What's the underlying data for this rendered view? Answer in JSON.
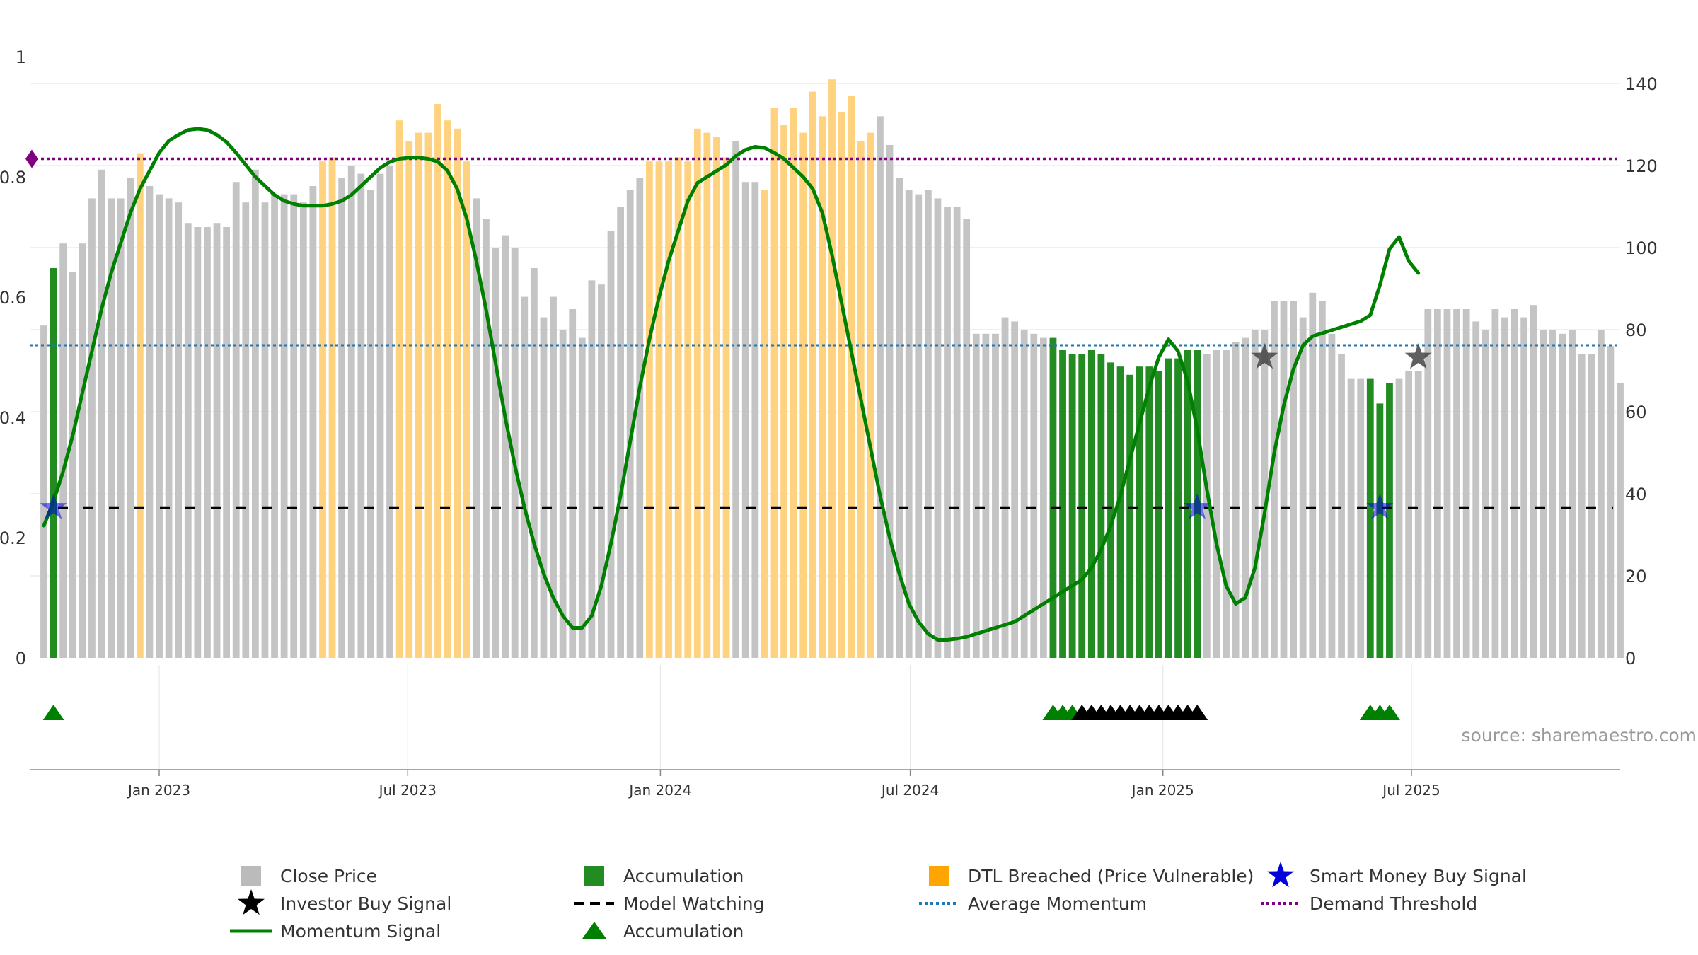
{
  "source_text": "source: sharemaestro.com",
  "chart_data": {
    "type": "bar",
    "x_start": "2022-10-09",
    "bar_interval_days": 7,
    "y_left_ticks": [
      "0",
      "0.2",
      "0.4",
      "0.6",
      "0.8",
      "1"
    ],
    "y_right_ticks": [
      "0",
      "20",
      "40",
      "60",
      "80",
      "100",
      "120",
      "140"
    ],
    "y_left_range": [
      0,
      1
    ],
    "y_right_range": [
      0,
      140
    ],
    "x_ticks": [
      {
        "label": "Jan 2023",
        "date": "2023-01-01"
      },
      {
        "label": "Jul 2023",
        "date": "2023-07-01"
      },
      {
        "label": "Jan 2024",
        "date": "2024-01-01"
      },
      {
        "label": "Jul 2024",
        "date": "2024-07-01"
      },
      {
        "label": "Jan 2025",
        "date": "2025-01-01"
      },
      {
        "label": "Jul 2025",
        "date": "2025-07-01"
      }
    ],
    "close_price": [
      81,
      95,
      101,
      94,
      101,
      112,
      119,
      112,
      112,
      117,
      123,
      115,
      113,
      112,
      111,
      106,
      105,
      105,
      106,
      105,
      116,
      111,
      119,
      111,
      113,
      113,
      113,
      111,
      115,
      121,
      122,
      117,
      120,
      118,
      114,
      118,
      120,
      131,
      126,
      128,
      128,
      135,
      131,
      129,
      121,
      112,
      107,
      100,
      103,
      100,
      88,
      95,
      83,
      88,
      80,
      85,
      78,
      92,
      91,
      104,
      110,
      114,
      117,
      121,
      121,
      121,
      122,
      121,
      129,
      128,
      127,
      122,
      126,
      116,
      116,
      114,
      134,
      130,
      134,
      128,
      138,
      132,
      141,
      133,
      137,
      126,
      128,
      132,
      125,
      117,
      114,
      113,
      114,
      112,
      110,
      110,
      107,
      79,
      79,
      79,
      83,
      82,
      80,
      79,
      78,
      78,
      75,
      74,
      74,
      75,
      74,
      72,
      71,
      69,
      71,
      71,
      70,
      73,
      73,
      75,
      75,
      74,
      75,
      75,
      77,
      78,
      80,
      80,
      87,
      87,
      87,
      83,
      89,
      87,
      79,
      74,
      68,
      68,
      68,
      62,
      67,
      68,
      70,
      70,
      85,
      85,
      85,
      85,
      85,
      82,
      80,
      85,
      83,
      85,
      83,
      86,
      80,
      80,
      79,
      80,
      74,
      74,
      80,
      76,
      67
    ],
    "close_price_categories": {
      "accumulation_ranges": [
        [
          1,
          1
        ],
        [
          105,
          120
        ],
        [
          138,
          140
        ]
      ],
      "dtl_ranges": [
        [
          10,
          10
        ],
        [
          29,
          30
        ],
        [
          37,
          44
        ],
        [
          63,
          71
        ],
        [
          75,
          86
        ]
      ]
    },
    "momentum_signal": [
      0.22,
      0.26,
      0.31,
      0.37,
      0.44,
      0.51,
      0.58,
      0.64,
      0.69,
      0.74,
      0.78,
      0.81,
      0.84,
      0.86,
      0.87,
      0.878,
      0.88,
      0.878,
      0.87,
      0.858,
      0.84,
      0.82,
      0.8,
      0.785,
      0.77,
      0.76,
      0.755,
      0.752,
      0.752,
      0.752,
      0.755,
      0.76,
      0.77,
      0.785,
      0.8,
      0.815,
      0.825,
      0.83,
      0.832,
      0.832,
      0.83,
      0.825,
      0.81,
      0.78,
      0.73,
      0.66,
      0.58,
      0.49,
      0.4,
      0.32,
      0.25,
      0.19,
      0.14,
      0.1,
      0.07,
      0.05,
      0.05,
      0.07,
      0.12,
      0.19,
      0.27,
      0.36,
      0.45,
      0.53,
      0.6,
      0.66,
      0.71,
      0.76,
      0.79,
      0.8,
      0.81,
      0.82,
      0.835,
      0.845,
      0.85,
      0.848,
      0.84,
      0.83,
      0.815,
      0.8,
      0.78,
      0.74,
      0.67,
      0.59,
      0.51,
      0.43,
      0.35,
      0.27,
      0.2,
      0.14,
      0.09,
      0.06,
      0.04,
      0.03,
      0.03,
      0.032,
      0.035,
      0.04,
      0.045,
      0.05,
      0.055,
      0.06,
      0.07,
      0.08,
      0.09,
      0.1,
      0.11,
      0.12,
      0.13,
      0.15,
      0.18,
      0.22,
      0.27,
      0.33,
      0.39,
      0.45,
      0.5,
      0.53,
      0.51,
      0.46,
      0.38,
      0.28,
      0.19,
      0.12,
      0.09,
      0.1,
      0.15,
      0.24,
      0.34,
      0.42,
      0.48,
      0.52,
      0.535,
      0.54,
      0.545,
      0.55,
      0.555,
      0.56,
      0.57,
      0.62,
      0.68,
      0.7,
      0.66,
      0.64
    ],
    "average_momentum": 0.52,
    "demand_threshold": 0.83,
    "model_watching": 0.25,
    "smart_money_buy_signals": [
      {
        "index": 1,
        "y": 0.25
      },
      {
        "index": 120,
        "y": 0.25
      },
      {
        "index": 139,
        "y": 0.25
      }
    ],
    "investor_buy_signals": [
      {
        "index": 127,
        "y": 0.5
      },
      {
        "index": 143,
        "y": 0.5
      }
    ],
    "signal_strip": {
      "green_up_triangles": [
        1,
        105,
        106,
        107,
        138,
        139,
        140
      ],
      "black_up_triangles": [
        108,
        109,
        110,
        111,
        112,
        113,
        114,
        115,
        116,
        117,
        118,
        119,
        120
      ]
    },
    "legend": [
      {
        "label": "Close Price",
        "marker": "square",
        "color": "#bbbbbb"
      },
      {
        "label": "Accumulation",
        "marker": "square",
        "color": "#228b22"
      },
      {
        "label": "DTL Breached (Price Vulnerable)",
        "marker": "square",
        "color": "#ffa500"
      },
      {
        "label": "Smart Money Buy Signal",
        "marker": "star",
        "color": "#0000dd"
      },
      {
        "label": "Investor Buy Signal",
        "marker": "star",
        "color": "#000000"
      },
      {
        "label": "Model Watching",
        "marker": "dash",
        "color": "#000000"
      },
      {
        "label": "Average Momentum",
        "marker": "dot",
        "color": "#1f77b4"
      },
      {
        "label": "Demand Threshold",
        "marker": "dot",
        "color": "#800080"
      },
      {
        "label": "Momentum Signal",
        "marker": "line",
        "color": "#008000"
      },
      {
        "label": "Accumulation",
        "marker": "triangle",
        "color": "#008000"
      }
    ],
    "colors": {
      "close_price": "#c4c4c4",
      "accumulation": "#228b22",
      "dtl": "#ffd27f",
      "momentum": "#008000",
      "average_momentum": "#1f77b4",
      "demand_threshold": "#800080",
      "model_watching": "#000000",
      "smart_money": "#0000dd",
      "investor": "#000000"
    }
  }
}
